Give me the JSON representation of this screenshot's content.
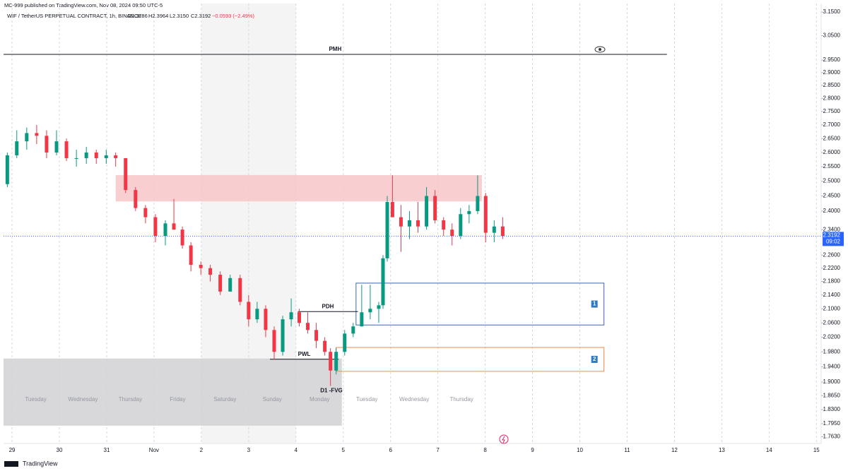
{
  "header": {
    "publisher": "MC-999 published on TradingView.com, Nov 08, 2024 09:50 UTC-5",
    "symbol": "WIF / TetherUS PERPETUAL CONTRACT, 1h, BINANCE",
    "ohlc": [
      "O2.3786",
      "H2.3964",
      "L2.3150",
      "C2.3192"
    ],
    "change": "−0.0593 (−2.49%)"
  },
  "footer": {
    "brand": "TradingView"
  },
  "chart_data": {
    "type": "candlestick",
    "log_scale": true,
    "grid": "x",
    "up_color": "#089981",
    "down_color": "#f23645",
    "xlim": [
      -0.18,
      17.1
    ],
    "ylim": [
      1.747,
      3.187
    ],
    "xticks": [
      {
        "value": 0,
        "label": "29"
      },
      {
        "value": 1,
        "label": "30"
      },
      {
        "value": 2,
        "label": "31"
      },
      {
        "value": 3,
        "label": "Nov"
      },
      {
        "value": 4,
        "label": "2"
      },
      {
        "value": 5,
        "label": "3"
      },
      {
        "value": 6,
        "label": "4"
      },
      {
        "value": 7,
        "label": "5"
      },
      {
        "value": 8,
        "label": "6"
      },
      {
        "value": 9,
        "label": "7"
      },
      {
        "value": 10,
        "label": "8"
      },
      {
        "value": 11,
        "label": "9"
      },
      {
        "value": 12,
        "label": "10"
      },
      {
        "value": 13,
        "label": "11"
      },
      {
        "value": 14,
        "label": "12"
      },
      {
        "value": 15,
        "label": "13"
      },
      {
        "value": 16,
        "label": "14"
      },
      {
        "value": 17,
        "label": "15"
      }
    ],
    "yticks": [
      {
        "value": 3.15,
        "label": "3.1500"
      },
      {
        "value": 3.05,
        "label": "3.0500"
      },
      {
        "value": 2.95,
        "label": "2.9500"
      },
      {
        "value": 2.9,
        "label": "2.9000"
      },
      {
        "value": 2.85,
        "label": "2.8500"
      },
      {
        "value": 2.8,
        "label": "2.8000"
      },
      {
        "value": 2.75,
        "label": "2.7500"
      },
      {
        "value": 2.7,
        "label": "2.7000"
      },
      {
        "value": 2.65,
        "label": "2.6500"
      },
      {
        "value": 2.6,
        "label": "2.6000"
      },
      {
        "value": 2.55,
        "label": "2.5500"
      },
      {
        "value": 2.5,
        "label": "2.5000"
      },
      {
        "value": 2.45,
        "label": "2.4500"
      },
      {
        "value": 2.4,
        "label": "2.4000"
      },
      {
        "value": 2.34,
        "label": "2.3400"
      },
      {
        "value": 2.26,
        "label": "2.2600"
      },
      {
        "value": 2.22,
        "label": "2.2200"
      },
      {
        "value": 2.18,
        "label": "2.1800"
      },
      {
        "value": 2.14,
        "label": "2.1400"
      },
      {
        "value": 2.1,
        "label": "2.1000"
      },
      {
        "value": 2.06,
        "label": "2.0600"
      },
      {
        "value": 2.02,
        "label": "2.0200"
      },
      {
        "value": 1.98,
        "label": "1.9800"
      },
      {
        "value": 1.94,
        "label": "1.9400"
      },
      {
        "value": 1.9,
        "label": "1.9000"
      },
      {
        "value": 1.865,
        "label": "1.8650"
      },
      {
        "value": 1.83,
        "label": "1.8300"
      },
      {
        "value": 1.795,
        "label": "1.7950"
      },
      {
        "value": 1.763,
        "label": "1.7630"
      }
    ],
    "last": {
      "value": 2.3192,
      "label": "2.3192",
      "countdown": "09:02",
      "color": "#2962ff"
    },
    "weekend": [
      4,
      6
    ],
    "weekday_labels": [
      "Tuesday",
      "Wednesday",
      "Thursday",
      "Friday",
      "Saturday",
      "Sunday",
      "Monday",
      "Tuesday",
      "Wednesday",
      "Thursday"
    ],
    "zones": [
      {
        "x": [
          2.19,
          9.93
        ],
        "y": [
          2.432,
          2.521
        ],
        "fill": "#f7c5c8",
        "stroke": "none"
      },
      {
        "x": [
          -0.18,
          6.97
        ],
        "y": [
          1.79,
          1.962
        ],
        "fill": "#d1d1d4",
        "stroke": "none"
      },
      {
        "x": [
          7.27,
          12.51
        ],
        "y": [
          2.054,
          2.175
        ],
        "fill": "none",
        "stroke": "#3d64b0",
        "label": "1"
      },
      {
        "x": [
          6.85,
          12.51
        ],
        "y": [
          1.928,
          1.992
        ],
        "fill": "none",
        "stroke": "#f08a4b",
        "label": "2"
      }
    ],
    "levels": [
      {
        "label": "PMH",
        "value": 2.973,
        "x": [
          -0.18,
          13.84
        ]
      },
      {
        "label": "PDH",
        "value": 2.092,
        "x": [
          6.04,
          7.31
        ]
      },
      {
        "label": "PWL",
        "value": 1.96,
        "x": [
          5.45,
          6.9
        ]
      }
    ],
    "annotations": [
      {
        "text": "D1 -FVG",
        "x": 6.75,
        "y": 1.877
      }
    ],
    "candles": [
      {
        "x": -0.1,
        "o": 2.49,
        "h": 2.6,
        "l": 2.48,
        "c": 2.59
      },
      {
        "x": 0.1,
        "o": 2.59,
        "h": 2.68,
        "l": 2.58,
        "c": 2.64
      },
      {
        "x": 0.31,
        "o": 2.64,
        "h": 2.69,
        "l": 2.61,
        "c": 2.67
      },
      {
        "x": 0.52,
        "o": 2.67,
        "h": 2.7,
        "l": 2.63,
        "c": 2.66
      },
      {
        "x": 0.73,
        "o": 2.66,
        "h": 2.68,
        "l": 2.58,
        "c": 2.6
      },
      {
        "x": 0.94,
        "o": 2.6,
        "h": 2.68,
        "l": 2.59,
        "c": 2.64
      },
      {
        "x": 1.15,
        "o": 2.64,
        "h": 2.65,
        "l": 2.57,
        "c": 2.58
      },
      {
        "x": 1.36,
        "o": 2.58,
        "h": 2.61,
        "l": 2.55,
        "c": 2.58
      },
      {
        "x": 1.57,
        "o": 2.58,
        "h": 2.62,
        "l": 2.56,
        "c": 2.6
      },
      {
        "x": 1.78,
        "o": 2.6,
        "h": 2.61,
        "l": 2.56,
        "c": 2.58
      },
      {
        "x": 1.99,
        "o": 2.58,
        "h": 2.61,
        "l": 2.56,
        "c": 2.59
      },
      {
        "x": 2.19,
        "o": 2.59,
        "h": 2.6,
        "l": 2.55,
        "c": 2.58
      },
      {
        "x": 2.4,
        "o": 2.58,
        "h": 2.58,
        "l": 2.46,
        "c": 2.47
      },
      {
        "x": 2.61,
        "o": 2.47,
        "h": 2.48,
        "l": 2.4,
        "c": 2.41
      },
      {
        "x": 2.82,
        "o": 2.41,
        "h": 2.42,
        "l": 2.36,
        "c": 2.38
      },
      {
        "x": 3.03,
        "o": 2.38,
        "h": 2.39,
        "l": 2.3,
        "c": 2.32
      },
      {
        "x": 3.24,
        "o": 2.32,
        "h": 2.37,
        "l": 2.29,
        "c": 2.36
      },
      {
        "x": 3.42,
        "o": 2.36,
        "h": 2.44,
        "l": 2.34,
        "c": 2.34
      },
      {
        "x": 3.6,
        "o": 2.34,
        "h": 2.35,
        "l": 2.28,
        "c": 2.29
      },
      {
        "x": 3.78,
        "o": 2.29,
        "h": 2.3,
        "l": 2.21,
        "c": 2.23
      },
      {
        "x": 3.99,
        "o": 2.23,
        "h": 2.24,
        "l": 2.2,
        "c": 2.22
      },
      {
        "x": 4.19,
        "o": 2.22,
        "h": 2.23,
        "l": 2.18,
        "c": 2.2
      },
      {
        "x": 4.4,
        "o": 2.2,
        "h": 2.21,
        "l": 2.14,
        "c": 2.15
      },
      {
        "x": 4.61,
        "o": 2.15,
        "h": 2.2,
        "l": 2.15,
        "c": 2.19
      },
      {
        "x": 4.82,
        "o": 2.19,
        "h": 2.2,
        "l": 2.11,
        "c": 2.12
      },
      {
        "x": 5.0,
        "o": 2.12,
        "h": 2.14,
        "l": 2.05,
        "c": 2.07
      },
      {
        "x": 5.18,
        "o": 2.07,
        "h": 2.12,
        "l": 2.06,
        "c": 2.1
      },
      {
        "x": 5.36,
        "o": 2.1,
        "h": 2.11,
        "l": 2.02,
        "c": 2.04
      },
      {
        "x": 5.54,
        "o": 2.04,
        "h": 2.05,
        "l": 1.96,
        "c": 1.98
      },
      {
        "x": 5.72,
        "o": 1.98,
        "h": 2.08,
        "l": 1.97,
        "c": 2.07
      },
      {
        "x": 5.9,
        "o": 2.07,
        "h": 2.13,
        "l": 2.05,
        "c": 2.09
      },
      {
        "x": 6.07,
        "o": 2.09,
        "h": 2.1,
        "l": 2.05,
        "c": 2.06
      },
      {
        "x": 6.25,
        "o": 2.06,
        "h": 2.09,
        "l": 2.03,
        "c": 2.04
      },
      {
        "x": 6.43,
        "o": 2.04,
        "h": 2.06,
        "l": 1.99,
        "c": 2.01
      },
      {
        "x": 6.61,
        "o": 2.01,
        "h": 2.02,
        "l": 1.97,
        "c": 1.98
      },
      {
        "x": 6.73,
        "o": 1.98,
        "h": 1.99,
        "l": 1.89,
        "c": 1.93
      },
      {
        "x": 6.85,
        "o": 1.93,
        "h": 1.99,
        "l": 1.92,
        "c": 1.98
      },
      {
        "x": 7.03,
        "o": 1.98,
        "h": 2.04,
        "l": 1.97,
        "c": 2.03
      },
      {
        "x": 7.21,
        "o": 2.03,
        "h": 2.06,
        "l": 2.02,
        "c": 2.05
      },
      {
        "x": 7.39,
        "o": 2.05,
        "h": 2.17,
        "l": 2.05,
        "c": 2.09
      },
      {
        "x": 7.57,
        "o": 2.09,
        "h": 2.17,
        "l": 2.07,
        "c": 2.1
      },
      {
        "x": 7.75,
        "o": 2.1,
        "h": 2.12,
        "l": 2.06,
        "c": 2.11
      },
      {
        "x": 7.84,
        "o": 2.11,
        "h": 2.26,
        "l": 2.1,
        "c": 2.25
      },
      {
        "x": 7.93,
        "o": 2.25,
        "h": 2.45,
        "l": 2.24,
        "c": 2.43
      },
      {
        "x": 8.04,
        "o": 2.43,
        "h": 2.52,
        "l": 2.38,
        "c": 2.38
      },
      {
        "x": 8.22,
        "o": 2.38,
        "h": 2.42,
        "l": 2.27,
        "c": 2.35
      },
      {
        "x": 8.4,
        "o": 2.35,
        "h": 2.4,
        "l": 2.31,
        "c": 2.37
      },
      {
        "x": 8.58,
        "o": 2.37,
        "h": 2.43,
        "l": 2.33,
        "c": 2.35
      },
      {
        "x": 8.76,
        "o": 2.35,
        "h": 2.48,
        "l": 2.34,
        "c": 2.45
      },
      {
        "x": 8.94,
        "o": 2.45,
        "h": 2.47,
        "l": 2.36,
        "c": 2.37
      },
      {
        "x": 9.12,
        "o": 2.37,
        "h": 2.38,
        "l": 2.32,
        "c": 2.34
      },
      {
        "x": 9.3,
        "o": 2.34,
        "h": 2.36,
        "l": 2.29,
        "c": 2.32
      },
      {
        "x": 9.48,
        "o": 2.32,
        "h": 2.41,
        "l": 2.31,
        "c": 2.39
      },
      {
        "x": 9.66,
        "o": 2.39,
        "h": 2.42,
        "l": 2.36,
        "c": 2.4
      },
      {
        "x": 9.84,
        "o": 2.4,
        "h": 2.52,
        "l": 2.39,
        "c": 2.45
      },
      {
        "x": 10.01,
        "o": 2.45,
        "h": 2.46,
        "l": 2.3,
        "c": 2.33
      },
      {
        "x": 10.19,
        "o": 2.33,
        "h": 2.37,
        "l": 2.3,
        "c": 2.35
      },
      {
        "x": 10.37,
        "o": 2.35,
        "h": 2.38,
        "l": 2.31,
        "c": 2.32
      }
    ]
  }
}
